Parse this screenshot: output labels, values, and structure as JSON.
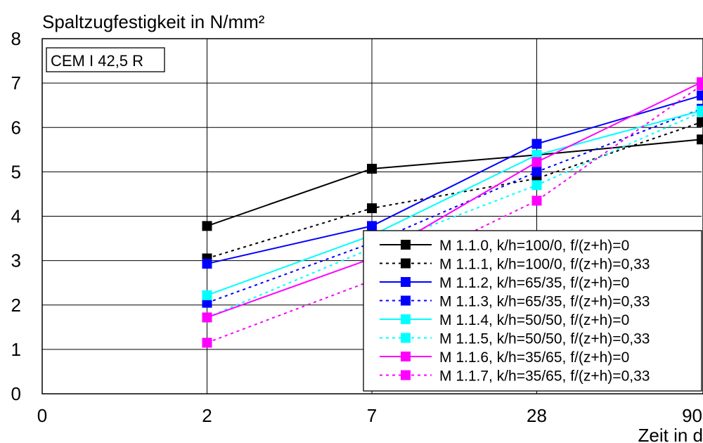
{
  "chart_data": {
    "type": "line",
    "ylabel": "Spaltzugfestigkeit in N/mm²",
    "xlabel": "Zeit in d",
    "annotation": "CEM I 42,5 R",
    "x_ticks": [
      0,
      2,
      7,
      28,
      90
    ],
    "y_ticks": [
      0,
      1,
      2,
      3,
      4,
      5,
      6,
      7,
      8
    ],
    "ylim": [
      0,
      8
    ],
    "x_axis_scale": "categorical positions 0, 2, 7, 28, 90 at equal spacing",
    "grid": true,
    "legend_position": "bottom-right",
    "x": [
      2,
      7,
      28,
      90
    ],
    "series": [
      {
        "name": "M 1.1.0, k/h=100/0, f/(z+h)=0",
        "color": "#000000",
        "dash": "solid",
        "values": [
          3.78,
          5.07,
          5.38,
          5.73
        ]
      },
      {
        "name": "M 1.1.1, k/h=100/0, f/(z+h)=0,33",
        "color": "#000000",
        "dash": "dotted",
        "values": [
          3.05,
          4.18,
          4.85,
          6.12
        ]
      },
      {
        "name": "M 1.1.2, k/h=65/35, f/(z+h)=0",
        "color": "#0000ff",
        "dash": "solid",
        "values": [
          2.93,
          3.78,
          5.63,
          6.72
        ]
      },
      {
        "name": "M 1.1.3, k/h=65/35, f/(z+h)=0,33",
        "color": "#0000ff",
        "dash": "dotted",
        "values": [
          2.05,
          3.4,
          5.0,
          6.42
        ]
      },
      {
        "name": "M 1.1.4, k/h=50/50, f/(z+h)=0",
        "color": "#00ffff",
        "dash": "solid",
        "values": [
          2.22,
          3.57,
          5.38,
          6.38
        ]
      },
      {
        "name": "M 1.1.5, k/h=50/50, f/(z+h)=0,33",
        "color": "#00ffff",
        "dash": "dotted",
        "values": [
          1.72,
          3.28,
          4.7,
          6.35
        ]
      },
      {
        "name": "M 1.1.6, k/h=35/65, f/(z+h)=0",
        "color": "#ff00ff",
        "dash": "solid",
        "values": [
          1.72,
          3.05,
          5.22,
          7.02
        ]
      },
      {
        "name": "M 1.1.7, k/h=35/65, f/(z+h)=0,33",
        "color": "#ff00ff",
        "dash": "dotted",
        "values": [
          1.15,
          2.55,
          4.35,
          6.95
        ]
      }
    ]
  }
}
